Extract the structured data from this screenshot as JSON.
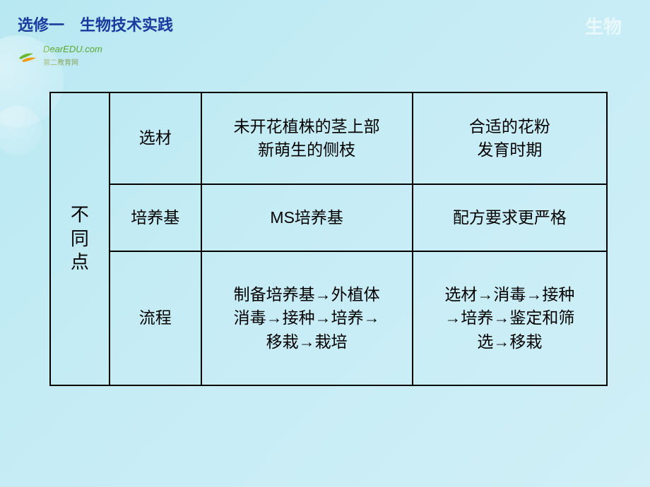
{
  "header": {
    "left": "选修一　生物技术实践",
    "right": "生物"
  },
  "logo": {
    "brand": "DearEDU.com",
    "subtitle": "第二教育网"
  },
  "table": {
    "group_label": "不\n同\n点",
    "rows": [
      {
        "label": "选材",
        "col_a": "未开花植株的茎上部\n新萌生的侧枝",
        "col_b": "合适的花粉\n发育时期"
      },
      {
        "label": "培养基",
        "col_a": "MS培养基",
        "col_b": "配方要求更严格"
      },
      {
        "label": "流程",
        "col_a": "制备培养基→外植体\n消毒→接种→培养→\n移栽→栽培",
        "col_b": "选材→消毒→接种\n→培养→鉴定和筛\n选→移栽"
      }
    ]
  },
  "colors": {
    "heading": "#1a3a9e",
    "subject": "#e8f8fb",
    "border": "#000000",
    "logo_green": "#5aa82e",
    "logo_orange": "#f39c12",
    "bg_top": "#b8e8f2",
    "bg_bottom": "#d0eff7"
  }
}
